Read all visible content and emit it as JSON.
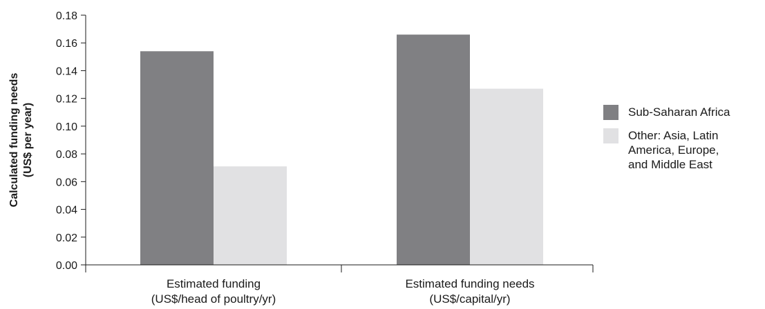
{
  "chart_data": {
    "type": "bar",
    "categories": [
      [
        "Estimated funding",
        "(US$/head of poultry/yr)"
      ],
      [
        "Estimated funding needs",
        "(US$/capital/yr)"
      ]
    ],
    "series": [
      {
        "name": "Sub-Saharan Africa",
        "values": [
          0.154,
          0.166
        ],
        "color": "#808083"
      },
      {
        "name": "Other: Asia, Latin\nAmerica, Europe,\nand Middle East",
        "values": [
          0.071,
          0.127
        ],
        "color": "#e1e1e3"
      }
    ],
    "ylabel": [
      "Calculated funding needs",
      "(US$ per year)"
    ],
    "ylim": [
      0,
      0.18
    ],
    "yticks": [
      "0.00",
      "0.02",
      "0.04",
      "0.06",
      "0.08",
      "0.10",
      "0.12",
      "0.14",
      "0.16",
      "0.18"
    ],
    "grid": false,
    "legend_position": "right"
  }
}
